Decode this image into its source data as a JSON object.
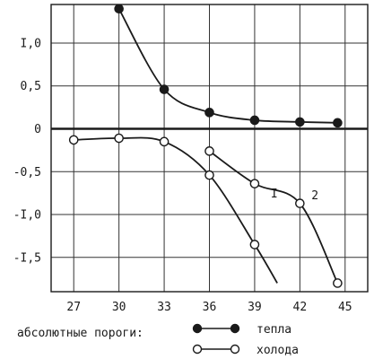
{
  "chart_data": {
    "type": "line",
    "xlim": [
      25.5,
      46.5
    ],
    "ylim": [
      -1.9,
      1.45
    ],
    "grid": true,
    "x_ticks": [
      27,
      30,
      33,
      36,
      39,
      42,
      45
    ],
    "x_tick_labels": [
      "27",
      "30",
      "33",
      "36",
      "39",
      "42",
      "45"
    ],
    "y_ticks": [
      1.0,
      0.5,
      0,
      -0.5,
      -1.0,
      -1.5
    ],
    "y_tick_labels": [
      "I,0",
      "0,5",
      "0",
      "-0,5",
      "-I,0",
      "-I,5"
    ],
    "series": [
      {
        "name": "тепла",
        "marker": "filled",
        "points": [
          [
            30,
            1.4
          ],
          [
            33,
            0.46
          ],
          [
            36,
            0.19
          ],
          [
            39,
            0.1
          ],
          [
            42,
            0.08
          ],
          [
            44.5,
            0.07
          ]
        ],
        "tail": []
      },
      {
        "name": "I",
        "marker": "open",
        "points": [
          [
            27,
            -0.13
          ],
          [
            30,
            -0.11
          ],
          [
            33,
            -0.15
          ],
          [
            36,
            -0.54
          ],
          [
            39,
            -1.35
          ]
        ],
        "tail": [
          [
            40.5,
            -1.8
          ]
        ]
      },
      {
        "name": "2",
        "marker": "open",
        "points": [
          [
            36,
            -0.26
          ],
          [
            39,
            -0.64
          ],
          [
            42,
            -0.87
          ],
          [
            44.5,
            -1.8
          ]
        ],
        "tail": []
      }
    ],
    "curve_labels": [
      {
        "text": "I",
        "x": 40.3,
        "y": -0.8
      },
      {
        "text": "2",
        "x": 43,
        "y": -0.82
      }
    ],
    "legend": {
      "title": "абсолютные пороги:",
      "entries": [
        {
          "label": "тепла",
          "marker": "filled"
        },
        {
          "label": "холода",
          "marker": "open"
        }
      ]
    }
  }
}
